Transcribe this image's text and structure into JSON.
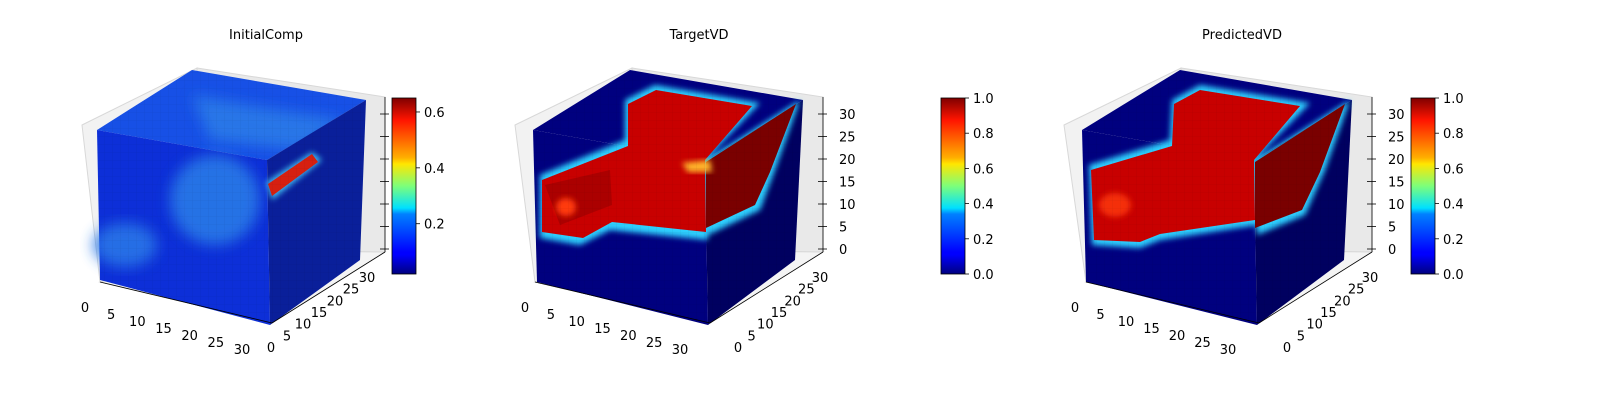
{
  "chart_data": [
    {
      "type": "heatmap",
      "title": "InitialComp",
      "render": "3d-voxel-cube",
      "colormap": "jet",
      "axes": {
        "x": {
          "ticks": [
            0,
            5,
            10,
            15,
            20,
            25,
            30
          ],
          "range": [
            0,
            32
          ]
        },
        "y": {
          "ticks": [
            0,
            5,
            10,
            15,
            20,
            25,
            30
          ],
          "range": [
            0,
            32
          ]
        },
        "z": {
          "ticks": [],
          "range": [
            0,
            32
          ]
        }
      },
      "colorbar": {
        "range": [
          0.02,
          0.65
        ],
        "ticks": [
          0.2,
          0.4,
          0.6
        ],
        "tick_labels": [
          "0.2",
          "0.4",
          "0.6"
        ]
      },
      "grid": true
    },
    {
      "type": "heatmap",
      "title": "TargetVD",
      "render": "3d-voxel-cube",
      "colormap": "jet",
      "axes": {
        "x": {
          "ticks": [
            0,
            5,
            10,
            15,
            20,
            25,
            30
          ],
          "range": [
            0,
            32
          ]
        },
        "y": {
          "ticks": [
            0,
            5,
            10,
            15,
            20,
            25,
            30
          ],
          "range": [
            0,
            32
          ]
        },
        "z": {
          "ticks": [
            0,
            5,
            10,
            15,
            20,
            25,
            30
          ],
          "range": [
            0,
            32
          ]
        }
      },
      "colorbar": {
        "range": [
          0.0,
          1.0
        ],
        "ticks": [
          0.0,
          0.2,
          0.4,
          0.6,
          0.8,
          1.0
        ],
        "tick_labels": [
          "0.0",
          "0.2",
          "0.4",
          "0.6",
          "0.8",
          "1.0"
        ]
      },
      "grid": true
    },
    {
      "type": "heatmap",
      "title": "PredictedVD",
      "render": "3d-voxel-cube",
      "colormap": "jet",
      "axes": {
        "x": {
          "ticks": [
            0,
            5,
            10,
            15,
            20,
            25,
            30
          ],
          "range": [
            0,
            32
          ]
        },
        "y": {
          "ticks": [
            0,
            5,
            10,
            15,
            20,
            25,
            30
          ],
          "range": [
            0,
            32
          ]
        },
        "z": {
          "ticks": [
            0,
            5,
            10,
            15,
            20,
            25,
            30
          ],
          "range": [
            0,
            32
          ]
        }
      },
      "colorbar": {
        "range": [
          0.0,
          1.0
        ],
        "ticks": [
          0.0,
          0.2,
          0.4,
          0.6,
          0.8,
          1.0
        ],
        "tick_labels": [
          "0.0",
          "0.2",
          "0.4",
          "0.6",
          "0.8",
          "1.0"
        ]
      },
      "grid": true
    }
  ]
}
